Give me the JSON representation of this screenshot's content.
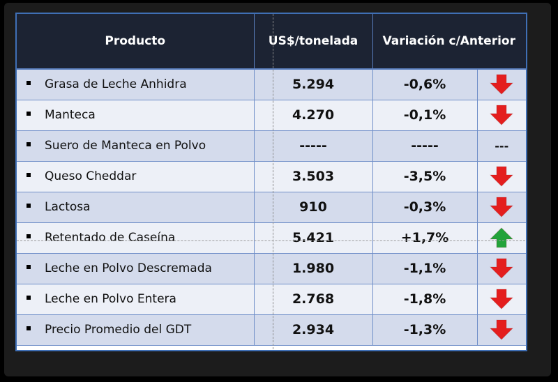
{
  "header": {
    "producto": "Producto",
    "precio": "US$/tonelada",
    "variacion": "Variación c/Anterior"
  },
  "colors": {
    "down": "#e41e1e",
    "up": "#22a33a"
  },
  "rows": [
    {
      "producto": "Grasa de Leche Anhidra",
      "precio": "5.294",
      "variacion": "-0,6%",
      "tendencia": "down",
      "indicador": ""
    },
    {
      "producto": "Manteca",
      "precio": "4.270",
      "variacion": "-0,1%",
      "tendencia": "down",
      "indicador": ""
    },
    {
      "producto": "Suero de Manteca en Polvo",
      "precio": "-----",
      "variacion": "-----",
      "tendencia": "none",
      "indicador": "---"
    },
    {
      "producto": "Queso Cheddar",
      "precio": "3.503",
      "variacion": "-3,5%",
      "tendencia": "down",
      "indicador": ""
    },
    {
      "producto": "Lactosa",
      "precio": "910",
      "variacion": "-0,3%",
      "tendencia": "down",
      "indicador": ""
    },
    {
      "producto": "Retentado de Caseína",
      "precio": "5.421",
      "variacion": "+1,7%",
      "tendencia": "up",
      "indicador": ""
    },
    {
      "producto": "Leche en Polvo Descremada",
      "precio": "1.980",
      "variacion": "-1,1%",
      "tendencia": "down",
      "indicador": ""
    },
    {
      "producto": "Leche en Polvo Entera",
      "precio": "2.768",
      "variacion": "-1,8%",
      "tendencia": "down",
      "indicador": ""
    },
    {
      "producto": "Precio Promedio del GDT",
      "precio": "2.934",
      "variacion": "-1,3%",
      "tendencia": "down",
      "indicador": ""
    }
  ]
}
